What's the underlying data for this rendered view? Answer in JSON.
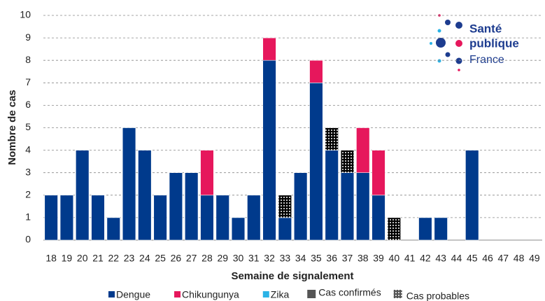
{
  "chart_data": {
    "type": "stacked_bar",
    "y_label": "Nombre de cas",
    "x_label": "Semaine de signalement",
    "categories": [
      "18",
      "19",
      "20",
      "21",
      "22",
      "23",
      "24",
      "25",
      "26",
      "27",
      "28",
      "29",
      "30",
      "31",
      "32",
      "33",
      "34",
      "35",
      "36",
      "37",
      "38",
      "39",
      "40",
      "41",
      "42",
      "43",
      "44",
      "45",
      "46",
      "47",
      "48",
      "49"
    ],
    "series": [
      {
        "name": "Dengue",
        "color": "#003a8c",
        "values": [
          2,
          2,
          4,
          2,
          1,
          5,
          4,
          2,
          3,
          3,
          2,
          2,
          1,
          2,
          8,
          1,
          3,
          7,
          4,
          3,
          3,
          2,
          0,
          0,
          1,
          1,
          0,
          4,
          0,
          0,
          0,
          0
        ],
        "probable": [
          0,
          0,
          0,
          0,
          0,
          0,
          0,
          0,
          0,
          0,
          0,
          0,
          0,
          0,
          0,
          1,
          0,
          0,
          1,
          1,
          0,
          0,
          1,
          0,
          0,
          0,
          0,
          0,
          0,
          0,
          0,
          0
        ]
      },
      {
        "name": "Chikungunya",
        "color": "#e6175c",
        "values": [
          0,
          0,
          0,
          0,
          0,
          0,
          0,
          0,
          0,
          0,
          2,
          0,
          0,
          0,
          1,
          0,
          0,
          1,
          0,
          0,
          2,
          2,
          0,
          0,
          0,
          0,
          0,
          0,
          0,
          0,
          0,
          0
        ],
        "probable": [
          0,
          0,
          0,
          0,
          0,
          0,
          0,
          0,
          0,
          0,
          0,
          0,
          0,
          0,
          0,
          0,
          0,
          0,
          0,
          0,
          0,
          0,
          0,
          0,
          0,
          0,
          0,
          0,
          0,
          0,
          0,
          0
        ]
      },
      {
        "name": "Zika",
        "color": "#2bb3e6",
        "values": [
          0,
          0,
          0,
          0,
          0,
          0,
          0,
          0,
          0,
          0,
          0,
          0,
          0,
          0,
          0,
          0,
          0,
          0,
          0,
          0,
          0,
          0,
          0,
          0,
          0,
          0,
          0,
          0,
          0,
          0,
          0,
          0
        ],
        "probable": [
          0,
          0,
          0,
          0,
          0,
          0,
          0,
          0,
          0,
          0,
          0,
          0,
          0,
          0,
          0,
          0,
          0,
          0,
          0,
          0,
          0,
          0,
          0,
          0,
          0,
          0,
          0,
          0,
          0,
          0,
          0,
          0
        ]
      }
    ],
    "status_legend": [
      "Cas confirmés",
      "Cas probables"
    ],
    "ylim": [
      0,
      10
    ],
    "yticks": [
      0,
      1,
      2,
      3,
      4,
      5,
      6,
      7,
      8,
      9,
      10
    ],
    "grid": true,
    "logo": [
      "Santé",
      "publique",
      "France"
    ]
  }
}
